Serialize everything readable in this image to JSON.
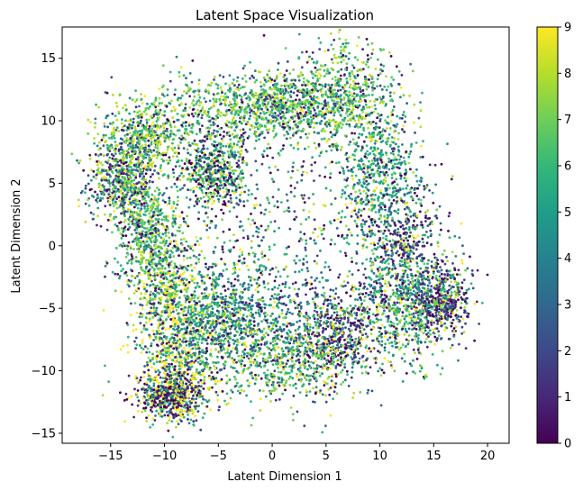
{
  "chart_data": {
    "type": "scatter",
    "title": "Latent Space Visualization",
    "xlabel": "Latent Dimension 1",
    "ylabel": "Latent Dimension 2",
    "xlim": [
      -19.5,
      22
    ],
    "ylim": [
      -15.8,
      17.5
    ],
    "xticks": [
      -15,
      -10,
      -5,
      0,
      5,
      10,
      15,
      20
    ],
    "yticks": [
      -15,
      -10,
      -5,
      0,
      5,
      10,
      15
    ],
    "grid": false,
    "legend": "none",
    "colormap": "viridis",
    "colorbar": {
      "range": [
        0,
        9
      ],
      "ticks": [
        0,
        1,
        2,
        3,
        4,
        5,
        6,
        7,
        8,
        9
      ]
    },
    "point_count_estimate": 10000,
    "clusters": [
      {
        "center": [
          -14,
          5
        ],
        "spread": [
          1.6,
          1.6
        ],
        "dominant_values": [
          1,
          2,
          6,
          8
        ]
      },
      {
        "center": [
          -12,
          8.5
        ],
        "spread": [
          2.0,
          1.6
        ],
        "dominant_values": [
          6,
          8
        ]
      },
      {
        "center": [
          -11.5,
          1
        ],
        "spread": [
          1.5,
          2.0
        ],
        "dominant_values": [
          6,
          7
        ]
      },
      {
        "center": [
          -9.5,
          -4
        ],
        "spread": [
          1.8,
          2.5
        ],
        "dominant_values": [
          7,
          9
        ]
      },
      {
        "center": [
          -8.5,
          -9
        ],
        "spread": [
          2.0,
          2.0
        ],
        "dominant_values": [
          6,
          9
        ]
      },
      {
        "center": [
          -9.5,
          -12
        ],
        "spread": [
          1.5,
          1.0
        ],
        "dominant_values": [
          0,
          1,
          9
        ]
      },
      {
        "center": [
          -5,
          -6
        ],
        "spread": [
          2.0,
          2.0
        ],
        "dominant_values": [
          4,
          6
        ]
      },
      {
        "center": [
          -5.5,
          6
        ],
        "spread": [
          1.5,
          1.5
        ],
        "dominant_values": [
          0,
          5,
          7
        ]
      },
      {
        "center": [
          -4,
          11
        ],
        "spread": [
          4.0,
          1.3
        ],
        "dominant_values": [
          6,
          7,
          8
        ]
      },
      {
        "center": [
          2,
          11.5
        ],
        "spread": [
          3.0,
          1.2
        ],
        "dominant_values": [
          6,
          7
        ]
      },
      {
        "center": [
          7,
          12
        ],
        "spread": [
          2.5,
          2.2
        ],
        "dominant_values": [
          6,
          7,
          8
        ]
      },
      {
        "center": [
          10,
          6
        ],
        "spread": [
          2.0,
          2.5
        ],
        "dominant_values": [
          5,
          6
        ]
      },
      {
        "center": [
          12,
          0
        ],
        "spread": [
          2.2,
          2.5
        ],
        "dominant_values": [
          0,
          1,
          3
        ]
      },
      {
        "center": [
          15.5,
          -4.5
        ],
        "spread": [
          1.5,
          1.5
        ],
        "dominant_values": [
          0,
          1,
          2
        ]
      },
      {
        "center": [
          12,
          -5
        ],
        "spread": [
          2.2,
          2.2
        ],
        "dominant_values": [
          5,
          6,
          7
        ]
      },
      {
        "center": [
          6,
          -7.5
        ],
        "spread": [
          2.0,
          2.0
        ],
        "dominant_values": [
          0,
          1,
          2
        ]
      },
      {
        "center": [
          1,
          -9
        ],
        "spread": [
          3.0,
          1.8
        ],
        "dominant_values": [
          6,
          7,
          8
        ]
      },
      {
        "center": [
          -1,
          -5
        ],
        "spread": [
          4.0,
          2.5
        ],
        "dominant_values": [
          3,
          4,
          6
        ]
      },
      {
        "center": [
          0,
          3
        ],
        "spread": [
          5.5,
          5.0
        ],
        "dominant_values": [
          0,
          2,
          5,
          6
        ]
      }
    ]
  }
}
